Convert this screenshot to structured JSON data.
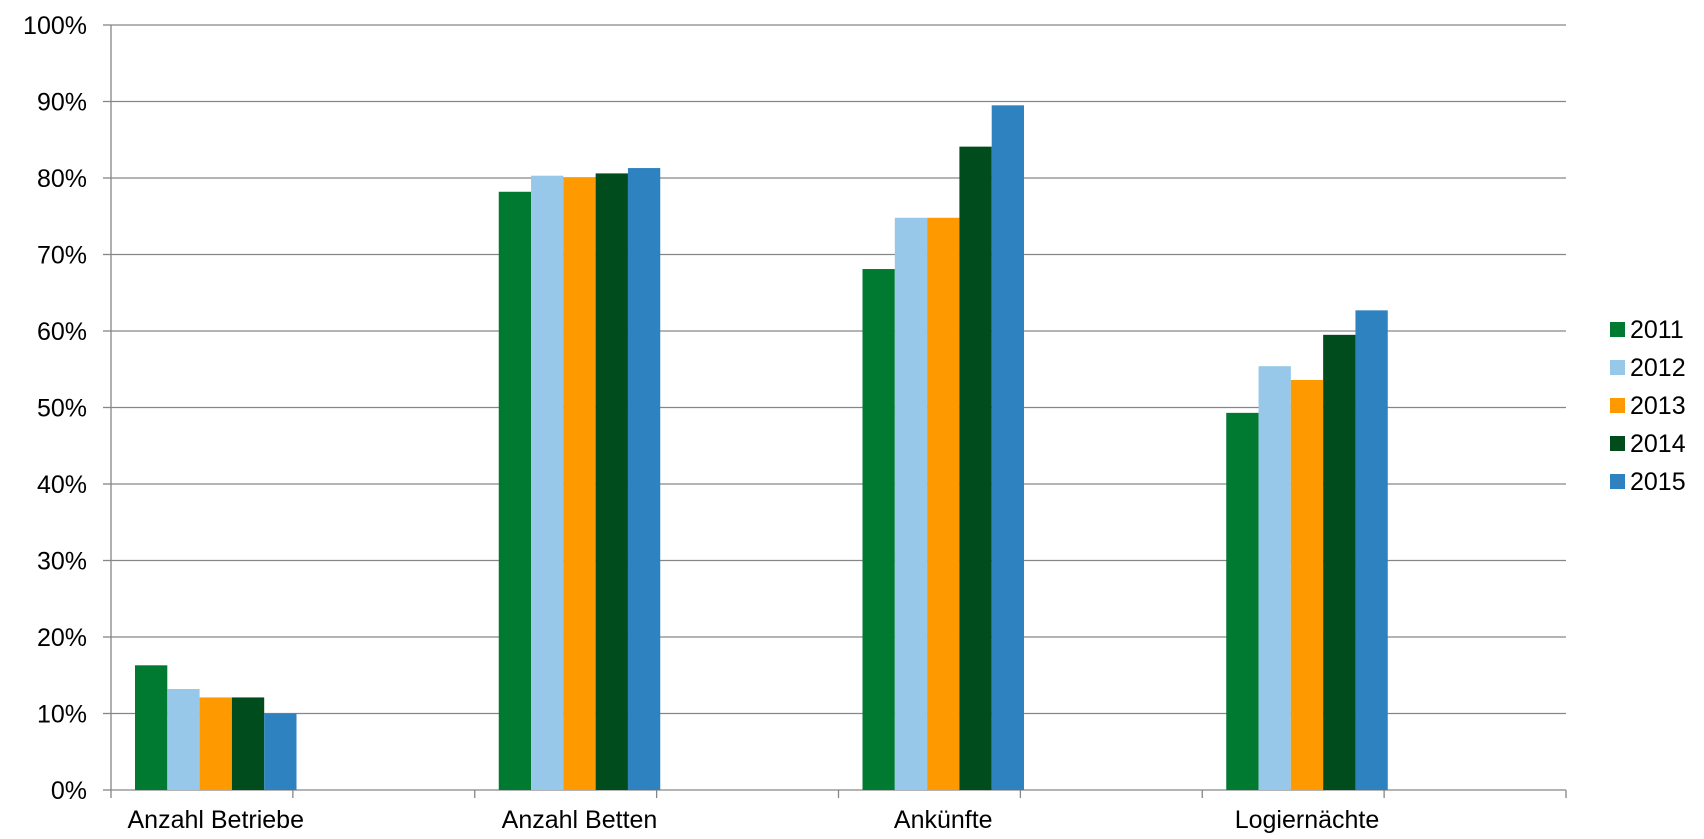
{
  "chart_data": {
    "type": "bar",
    "categories": [
      "Anzahl Betriebe",
      "Anzahl Betten",
      "Ankünfte",
      "Logiernächte"
    ],
    "series": [
      {
        "name": "2011",
        "color": "#007A30",
        "values": [
          16.3,
          78.2,
          68.1,
          49.3
        ]
      },
      {
        "name": "2012",
        "color": "#97C7E9",
        "values": [
          13.2,
          80.3,
          74.8,
          55.4
        ]
      },
      {
        "name": "2013",
        "color": "#FF9900",
        "values": [
          12.1,
          80.0,
          74.8,
          53.6
        ]
      },
      {
        "name": "2014",
        "color": "#004C1D",
        "values": [
          12.1,
          80.6,
          84.1,
          59.5
        ]
      },
      {
        "name": "2015",
        "color": "#2D82BF",
        "values": [
          10.0,
          81.3,
          89.5,
          62.7
        ]
      }
    ],
    "yticks": [
      "0%",
      "10%",
      "20%",
      "30%",
      "40%",
      "50%",
      "60%",
      "70%",
      "80%",
      "90%",
      "100%"
    ],
    "ylim": [
      0,
      100
    ],
    "grid": true,
    "legend_position": "right"
  }
}
